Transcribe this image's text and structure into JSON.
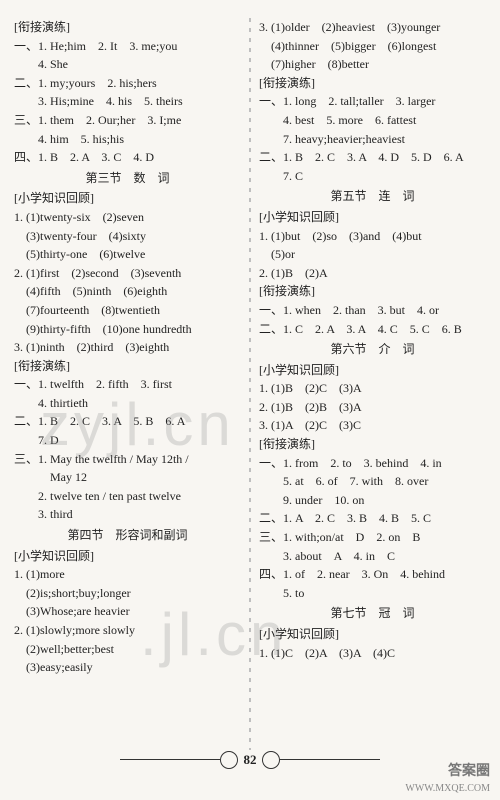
{
  "page_number": "82",
  "watermarks": {
    "wm1": "zyjl.cn",
    "wm2": ".jl.cn"
  },
  "footer": {
    "logo": "答案圈",
    "url": "WWW.MXQE.COM"
  },
  "left_column": [
    {
      "cls": "bracket-head",
      "text": "[衔接演练]"
    },
    {
      "cls": "ind0",
      "text": "一、1. He;him　2. It　3. me;you"
    },
    {
      "cls": "ind2",
      "text": "4. She"
    },
    {
      "cls": "ind0",
      "text": "二、1. my;yours　2. his;hers"
    },
    {
      "cls": "ind2",
      "text": "3. His;mine　4. his　5. theirs"
    },
    {
      "cls": "ind0",
      "text": "三、1. them　2. Our;her　3. I;me"
    },
    {
      "cls": "ind2",
      "text": "4. him　5. his;his"
    },
    {
      "cls": "ind0",
      "text": "四、1. B　2. A　3. C　4. D"
    },
    {
      "cls": "section-title",
      "text": "第三节　数　词"
    },
    {
      "cls": "bracket-head",
      "text": "[小学知识回顾]"
    },
    {
      "cls": "ind0",
      "text": "1. (1)twenty-six　(2)seven"
    },
    {
      "cls": "ind1",
      "text": "(3)twenty-four　(4)sixty"
    },
    {
      "cls": "ind1",
      "text": "(5)thirty-one　(6)twelve"
    },
    {
      "cls": "ind0",
      "text": "2. (1)first　(2)second　(3)seventh"
    },
    {
      "cls": "ind1",
      "text": "(4)fifth　(5)ninth　(6)eighth"
    },
    {
      "cls": "ind1",
      "text": "(7)fourteenth　(8)twentieth"
    },
    {
      "cls": "ind1",
      "text": "(9)thirty-fifth　(10)one hundredth"
    },
    {
      "cls": "ind0",
      "text": "3. (1)ninth　(2)third　(3)eighth"
    },
    {
      "cls": "bracket-head",
      "text": "[衔接演练]"
    },
    {
      "cls": "ind0",
      "text": "一、1. twelfth　2. fifth　3. first"
    },
    {
      "cls": "ind2",
      "text": "4. thirtieth"
    },
    {
      "cls": "ind0",
      "text": "二、1. B　2. C　3. A　5. B　6. A"
    },
    {
      "cls": "ind2",
      "text": "7. D"
    },
    {
      "cls": "ind0",
      "text": "三、1. May the twelfth / May 12th /"
    },
    {
      "cls": "ind2",
      "text": "　May 12"
    },
    {
      "cls": "ind2",
      "text": "2. twelve ten / ten past twelve"
    },
    {
      "cls": "ind2",
      "text": "3. third"
    },
    {
      "cls": "section-title",
      "text": "第四节　形容词和副词"
    },
    {
      "cls": "bracket-head",
      "text": "[小学知识回顾]"
    },
    {
      "cls": "ind0",
      "text": "1. (1)more"
    },
    {
      "cls": "ind1",
      "text": "(2)is;short;buy;longer"
    },
    {
      "cls": "ind1",
      "text": "(3)Whose;are heavier"
    },
    {
      "cls": "ind0",
      "text": "2. (1)slowly;more slowly"
    },
    {
      "cls": "ind1",
      "text": "(2)well;better;best"
    },
    {
      "cls": "ind1",
      "text": "(3)easy;easily"
    }
  ],
  "right_column": [
    {
      "cls": "ind0",
      "text": "3. (1)older　(2)heaviest　(3)younger"
    },
    {
      "cls": "ind1",
      "text": "(4)thinner　(5)bigger　(6)longest"
    },
    {
      "cls": "ind1",
      "text": "(7)higher　(8)better"
    },
    {
      "cls": "bracket-head",
      "text": "[衔接演练]"
    },
    {
      "cls": "ind0",
      "text": "一、1. long　2. tall;taller　3. larger"
    },
    {
      "cls": "ind2",
      "text": "4. best　5. more　6. fattest"
    },
    {
      "cls": "ind2",
      "text": "7. heavy;heavier;heaviest"
    },
    {
      "cls": "ind0",
      "text": "二、1. B　2. C　3. A　4. D　5. D　6. A"
    },
    {
      "cls": "ind2",
      "text": "7. C"
    },
    {
      "cls": "section-title",
      "text": "第五节　连　词"
    },
    {
      "cls": "bracket-head",
      "text": "[小学知识回顾]"
    },
    {
      "cls": "ind0",
      "text": "1. (1)but　(2)so　(3)and　(4)but"
    },
    {
      "cls": "ind1",
      "text": "(5)or"
    },
    {
      "cls": "ind0",
      "text": "2. (1)B　(2)A"
    },
    {
      "cls": "bracket-head",
      "text": "[衔接演练]"
    },
    {
      "cls": "ind0",
      "text": "一、1. when　2. than　3. but　4. or"
    },
    {
      "cls": "ind0",
      "text": "二、1. C　2. A　3. A　4. C　5. C　6. B"
    },
    {
      "cls": "section-title",
      "text": "第六节　介　词"
    },
    {
      "cls": "bracket-head",
      "text": "[小学知识回顾]"
    },
    {
      "cls": "ind0",
      "text": "1. (1)B　(2)C　(3)A"
    },
    {
      "cls": "ind0",
      "text": "2. (1)B　(2)B　(3)A"
    },
    {
      "cls": "ind0",
      "text": "3. (1)A　(2)C　(3)C"
    },
    {
      "cls": "bracket-head",
      "text": "[衔接演练]"
    },
    {
      "cls": "ind0",
      "text": "一、1. from　2. to　3. behind　4. in"
    },
    {
      "cls": "ind2",
      "text": "5. at　6. of　7. with　8. over"
    },
    {
      "cls": "ind2",
      "text": "9. under　10. on"
    },
    {
      "cls": "ind0",
      "text": "二、1. A　2. C　3. B　4. B　5. C"
    },
    {
      "cls": "ind0",
      "text": "三、1. with;on/at　D　2. on　B"
    },
    {
      "cls": "ind2",
      "text": "3. about　A　4. in　C"
    },
    {
      "cls": "ind0",
      "text": "四、1. of　2. near　3. On　4. behind"
    },
    {
      "cls": "ind2",
      "text": "5. to"
    },
    {
      "cls": "section-title",
      "text": "第七节　冠　词"
    },
    {
      "cls": "bracket-head",
      "text": "[小学知识回顾]"
    },
    {
      "cls": "ind0",
      "text": "1. (1)C　(2)A　(3)A　(4)C"
    }
  ]
}
